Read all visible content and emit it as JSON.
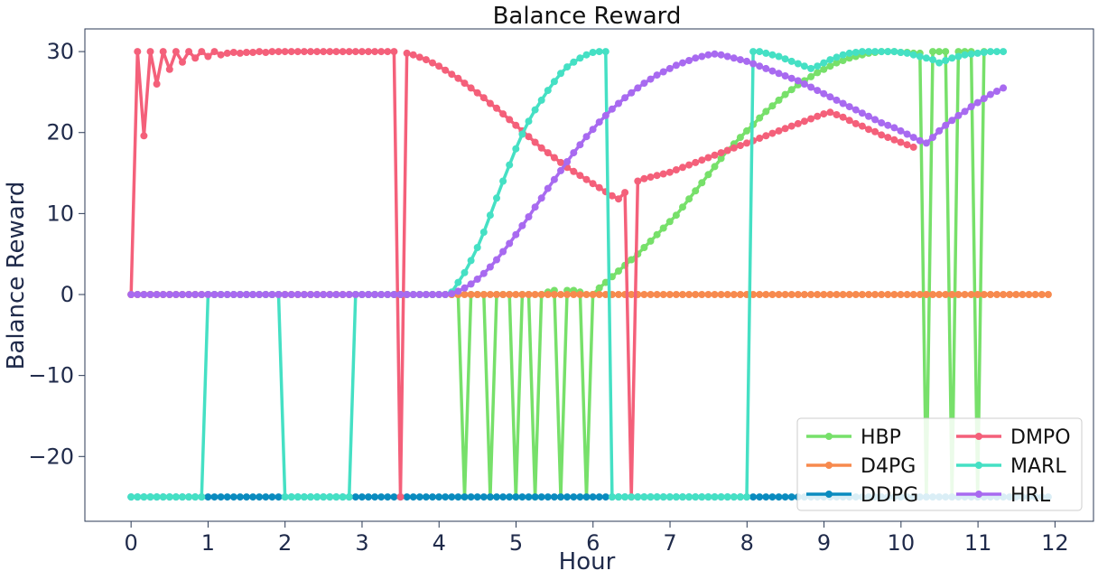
{
  "chart_data": {
    "type": "line",
    "title": "Balance Reward",
    "xlabel": "Hour",
    "ylabel": "Balance Reward",
    "xlim": [
      -0.6,
      12.5
    ],
    "ylim": [
      -28,
      32.8
    ],
    "x_ticks": [
      0,
      1,
      2,
      3,
      4,
      5,
      6,
      7,
      8,
      9,
      10,
      11,
      12
    ],
    "x_tick_labels": [
      "0",
      "1",
      "2",
      "3",
      "4",
      "5",
      "6",
      "7",
      "8",
      "9",
      "10",
      "11",
      "12"
    ],
    "y_ticks": [
      -20,
      -10,
      0,
      10,
      20,
      30
    ],
    "y_tick_labels": [
      "−20",
      "−10",
      "0",
      "10",
      "20",
      "30"
    ],
    "grid": false,
    "legend": {
      "placement": "bottom-right",
      "columns": 2
    },
    "x_step": 0.0833,
    "series": [
      {
        "name": "HBP",
        "color": "#77e06a",
        "values": [
          0,
          0,
          0,
          0,
          0,
          0,
          0,
          0,
          0,
          0,
          0,
          0,
          0,
          0,
          0,
          0,
          0,
          0,
          0,
          0,
          0,
          0,
          0,
          0,
          0,
          0,
          0,
          0,
          0,
          0,
          0,
          0,
          0,
          0,
          0,
          0,
          0,
          0,
          0,
          0,
          0,
          0,
          0,
          0,
          0,
          0,
          0,
          0,
          0,
          0,
          0,
          0,
          -25,
          0,
          0,
          0,
          -25,
          0,
          0,
          0,
          -25,
          0,
          0,
          -25,
          0,
          0.3,
          0.5,
          -25,
          0.5,
          0.5,
          0.3,
          -25,
          0,
          0.8,
          1.5,
          2.2,
          2.9,
          3.6,
          4.3,
          5.0,
          5.8,
          6.6,
          7.4,
          8.2,
          9.0,
          9.8,
          10.8,
          11.8,
          12.8,
          13.8,
          14.8,
          15.8,
          16.8,
          17.8,
          18.6,
          19.4,
          20.2,
          21.0,
          21.8,
          22.6,
          23.3,
          24.0,
          24.7,
          25.3,
          25.9,
          26.4,
          26.9,
          27.4,
          27.8,
          28.2,
          28.6,
          28.9,
          29.2,
          29.4,
          29.6,
          29.8,
          29.9,
          30.0,
          30.0,
          30.0,
          29.9,
          29.9,
          29.8,
          29.8,
          -25,
          30,
          30,
          30,
          -25,
          30,
          30,
          30,
          -25,
          30
        ]
      },
      {
        "name": "D4PG",
        "color": "#f78a4e",
        "values": [
          0,
          0,
          0,
          0,
          0,
          0,
          0,
          0,
          0,
          0,
          0,
          0,
          0,
          0,
          0,
          0,
          0,
          0,
          0,
          0,
          0,
          0,
          0,
          0,
          0,
          0,
          0,
          0,
          0,
          0,
          0,
          0,
          0,
          0,
          0,
          0,
          0,
          0,
          0,
          0,
          0,
          0,
          0,
          0,
          0,
          0,
          0,
          0,
          0,
          0,
          0,
          0,
          0,
          0,
          0,
          0,
          0,
          0,
          0,
          0,
          0,
          0,
          0,
          0,
          0,
          0,
          0,
          0,
          0,
          0,
          0,
          0,
          0,
          0,
          0,
          0,
          0,
          0,
          0,
          0,
          0,
          0,
          0,
          0,
          0,
          0,
          0,
          0,
          0,
          0,
          0,
          0,
          0,
          0,
          0,
          0,
          0,
          0,
          0,
          0,
          0,
          0,
          0,
          0,
          0,
          0,
          0,
          0,
          0,
          0,
          0,
          0,
          0,
          0,
          0,
          0,
          0,
          0,
          0,
          0,
          0,
          0,
          0,
          0,
          0,
          0,
          0,
          0,
          0,
          0,
          0,
          0,
          0,
          0,
          0,
          0,
          0,
          0,
          0,
          0,
          0,
          0,
          0,
          0
        ]
      },
      {
        "name": "DDPG",
        "color": "#0a8bbf",
        "values": [
          -25,
          -25,
          -25,
          -25,
          -25,
          -25,
          -25,
          -25,
          -25,
          -25,
          -25,
          -25,
          -25,
          -25,
          -25,
          -25,
          -25,
          -25,
          -25,
          -25,
          -25,
          -25,
          -25,
          -25,
          -25,
          -25,
          -25,
          -25,
          -25,
          -25,
          -25,
          -25,
          -25,
          -25,
          -25,
          -25,
          -25,
          -25,
          -25,
          -25,
          -25,
          -25,
          -25,
          -25,
          -25,
          -25,
          -25,
          -25,
          -25,
          -25,
          -25,
          -25,
          -25,
          -25,
          -25,
          -25,
          -25,
          -25,
          -25,
          -25,
          -25,
          -25,
          -25,
          -25,
          -25,
          -25,
          -25,
          -25,
          -25,
          -25,
          -25,
          -25,
          -25,
          -25,
          -25,
          -25,
          -25,
          -25,
          -25,
          -25,
          -25,
          -25,
          -25,
          -25,
          -25,
          -25,
          -25,
          -25,
          -25,
          -25,
          -25,
          -25,
          -25,
          -25,
          -25,
          -25,
          -25,
          -25,
          -25,
          -25,
          -25,
          -25,
          -25,
          -25,
          -25,
          -25,
          -25,
          -25,
          -25,
          -25,
          -25,
          -25,
          -25,
          -25,
          -25,
          -25,
          -25,
          -25,
          -25,
          -25,
          -25,
          -25,
          -25,
          -25,
          -25,
          -25,
          -25,
          -25,
          -25,
          -25,
          -25,
          -25,
          -25,
          -25,
          -25,
          -25,
          -25,
          -25,
          -25,
          -25,
          -25,
          -25,
          -25,
          -25
        ]
      },
      {
        "name": "DMPO",
        "color": "#f4607a",
        "values": [
          0,
          30,
          19.6,
          30,
          26,
          30,
          27.8,
          30,
          28.7,
          30,
          29.2,
          30,
          29.4,
          30,
          29.6,
          29.8,
          29.9,
          29.8,
          29.9,
          29.9,
          30,
          29.9,
          30,
          30,
          30,
          30,
          30,
          30,
          30,
          30,
          30,
          30,
          30,
          30,
          30,
          30,
          30,
          30,
          30,
          30,
          30,
          30,
          -25,
          29.8,
          29.6,
          29.3,
          29.0,
          28.6,
          28.2,
          27.7,
          27.2,
          26.7,
          26.1,
          25.5,
          24.9,
          24.3,
          23.6,
          23.0,
          22.3,
          21.6,
          20.9,
          20.2,
          19.5,
          18.8,
          18.1,
          17.5,
          16.9,
          16.3,
          15.7,
          15.2,
          14.7,
          14.2,
          13.7,
          13.2,
          12.7,
          12.2,
          11.8,
          12.6,
          -25,
          14.0,
          14.3,
          14.5,
          14.7,
          14.9,
          15.1,
          15.4,
          15.7,
          16.0,
          16.3,
          16.6,
          16.9,
          17.2,
          17.5,
          17.8,
          18.1,
          18.4,
          18.7,
          19.0,
          19.3,
          19.6,
          19.9,
          20.2,
          20.5,
          20.8,
          21.1,
          21.4,
          21.7,
          22.0,
          22.3,
          22.5,
          22.2,
          21.9,
          21.5,
          21.1,
          20.8,
          20.4,
          20.1,
          19.7,
          19.4,
          19.1,
          18.8,
          18.5,
          18.2
        ]
      },
      {
        "name": "MARL",
        "color": "#45e0c4",
        "values": [
          -25,
          -25,
          -25,
          -25,
          -25,
          -25,
          -25,
          -25,
          -25,
          -25,
          -25,
          -25,
          0,
          0,
          0,
          0,
          0,
          0,
          0,
          0,
          0,
          0,
          0,
          0,
          -25,
          -25,
          -25,
          -25,
          -25,
          -25,
          -25,
          -25,
          -25,
          -25,
          -25,
          0,
          0,
          0,
          0,
          0,
          0,
          0,
          0,
          0,
          0,
          0,
          0,
          0,
          0,
          0,
          0.3,
          1.5,
          2.7,
          4.2,
          5.8,
          7.7,
          9.8,
          11.9,
          14.0,
          16.0,
          18.0,
          19.8,
          21.4,
          22.8,
          24.0,
          25.2,
          26.3,
          27.3,
          28.1,
          28.7,
          29.2,
          29.6,
          29.9,
          30,
          30,
          -25,
          -25,
          -25,
          -25,
          -25,
          -25,
          -25,
          -25,
          -25,
          -25,
          -25,
          -25,
          -25,
          -25,
          -25,
          -25,
          -25,
          -25,
          -25,
          -25,
          -25,
          -25,
          30,
          30,
          29.8,
          29.6,
          29.4,
          29.1,
          28.8,
          28.5,
          28.2,
          27.9,
          28.2,
          28.6,
          29.0,
          29.3,
          29.6,
          29.8,
          29.9,
          30,
          30,
          30,
          30,
          30,
          30,
          29.9,
          29.8,
          29.6,
          29.4,
          29.2,
          29.0,
          28.6,
          28.9,
          29.2,
          29.4,
          29.6,
          29.7,
          29.8,
          29.9,
          30,
          30,
          30
        ]
      },
      {
        "name": "HRL",
        "color": "#a86af0",
        "values": [
          0,
          0,
          0,
          0,
          0,
          0,
          0,
          0,
          0,
          0,
          0,
          0,
          0,
          0,
          0,
          0,
          0,
          0,
          0,
          0,
          0,
          0,
          0,
          0,
          0,
          0,
          0,
          0,
          0,
          0,
          0,
          0,
          0,
          0,
          0,
          0,
          0,
          0,
          0,
          0,
          0,
          0,
          0,
          0,
          0,
          0,
          0,
          0,
          0,
          0,
          0.1,
          0.4,
          0.8,
          1.3,
          1.9,
          2.6,
          3.4,
          4.3,
          5.3,
          6.3,
          7.4,
          8.5,
          9.6,
          10.8,
          11.9,
          13.1,
          14.2,
          15.3,
          16.4,
          17.5,
          18.5,
          19.5,
          20.4,
          21.3,
          22.1,
          22.9,
          23.6,
          24.3,
          24.9,
          25.5,
          26.1,
          26.6,
          27.1,
          27.5,
          27.9,
          28.3,
          28.6,
          28.9,
          29.2,
          29.4,
          29.6,
          29.7,
          29.6,
          29.4,
          29.2,
          29.0,
          28.8,
          28.5,
          28.2,
          27.9,
          27.6,
          27.3,
          27.0,
          26.7,
          26.4,
          26.0,
          25.6,
          25.2,
          24.8,
          24.4,
          24.0,
          23.6,
          23.2,
          22.8,
          22.4,
          22.0,
          21.6,
          21.2,
          20.9,
          20.6,
          20.2,
          19.8,
          19.4,
          19.0,
          18.7,
          19.4,
          20.2,
          20.9,
          21.5,
          22.1,
          22.6,
          23.2,
          23.7,
          24.2,
          24.7,
          25.1,
          25.5
        ]
      }
    ]
  }
}
